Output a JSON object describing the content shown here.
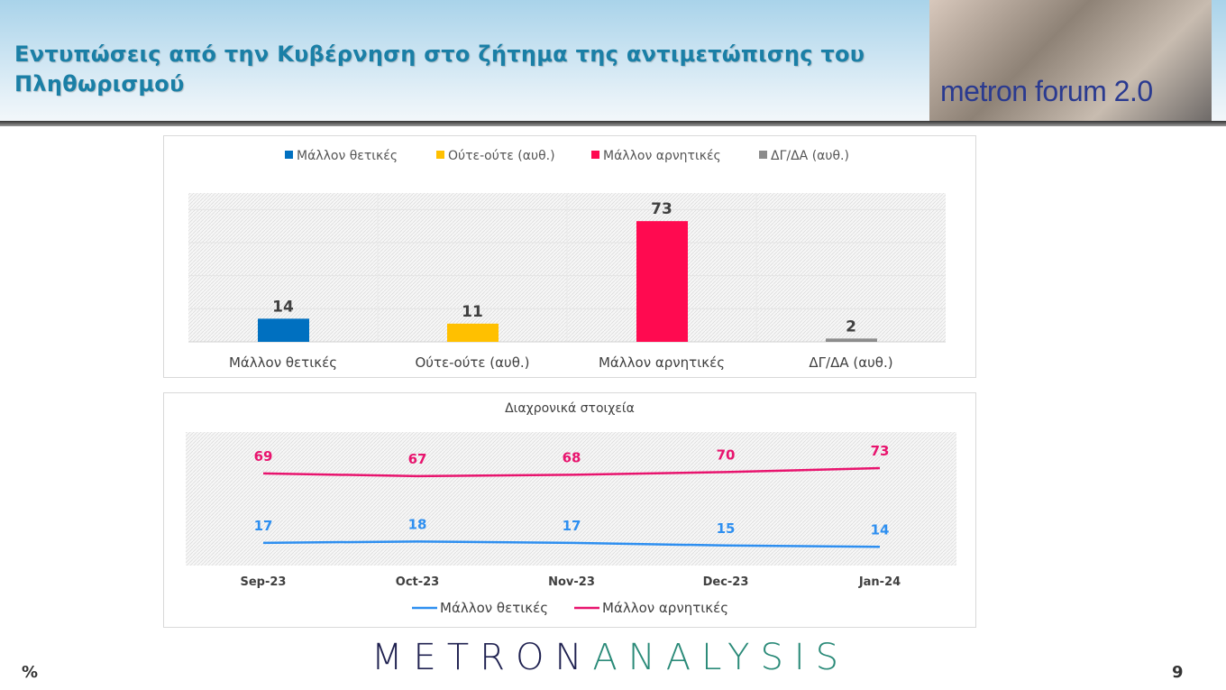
{
  "header": {
    "title": "Εντυπώσεις από την Κυβέρνηση στο ζήτημα της αντιμετώπισης του Πληθωρισμού",
    "logo_text": "metron forum 2.0"
  },
  "chart_data": [
    {
      "type": "bar",
      "categories": [
        "Μάλλον θετικές",
        "Ούτε-ούτε (αυθ.)",
        "Μάλλον αρνητικές",
        "ΔΓ/ΔΑ (αυθ.)"
      ],
      "values": [
        14,
        11,
        73,
        2
      ],
      "colors": [
        "#0070c0",
        "#ffc000",
        "#ff0a50",
        "#8c8c8c"
      ],
      "legend": [
        "Μάλλον θετικές",
        "Ούτε-ούτε (αυθ.)",
        "Μάλλον αρνητικές",
        "ΔΓ/ΔΑ (αυθ.)"
      ],
      "legend_position": "top",
      "ylim": [
        0,
        90
      ],
      "grid": true
    },
    {
      "type": "line",
      "title": "Διαχρονικά στοιχεία",
      "categories": [
        "Sep-23",
        "Oct-23",
        "Nov-23",
        "Dec-23",
        "Jan-24"
      ],
      "series": [
        {
          "name": "Μάλλον θετικές",
          "values": [
            17,
            18,
            17,
            15,
            14
          ],
          "color": "#2e8ff0"
        },
        {
          "name": "Μάλλον αρνητικές",
          "values": [
            69,
            67,
            68,
            70,
            73
          ],
          "color": "#e8146e"
        }
      ],
      "legend_position": "bottom",
      "ylim": [
        0,
        100
      ],
      "grid": false
    }
  ],
  "footer": {
    "brand_left": "METRON",
    "brand_right": "ANALYSIS",
    "unit": "%",
    "page": "9"
  }
}
